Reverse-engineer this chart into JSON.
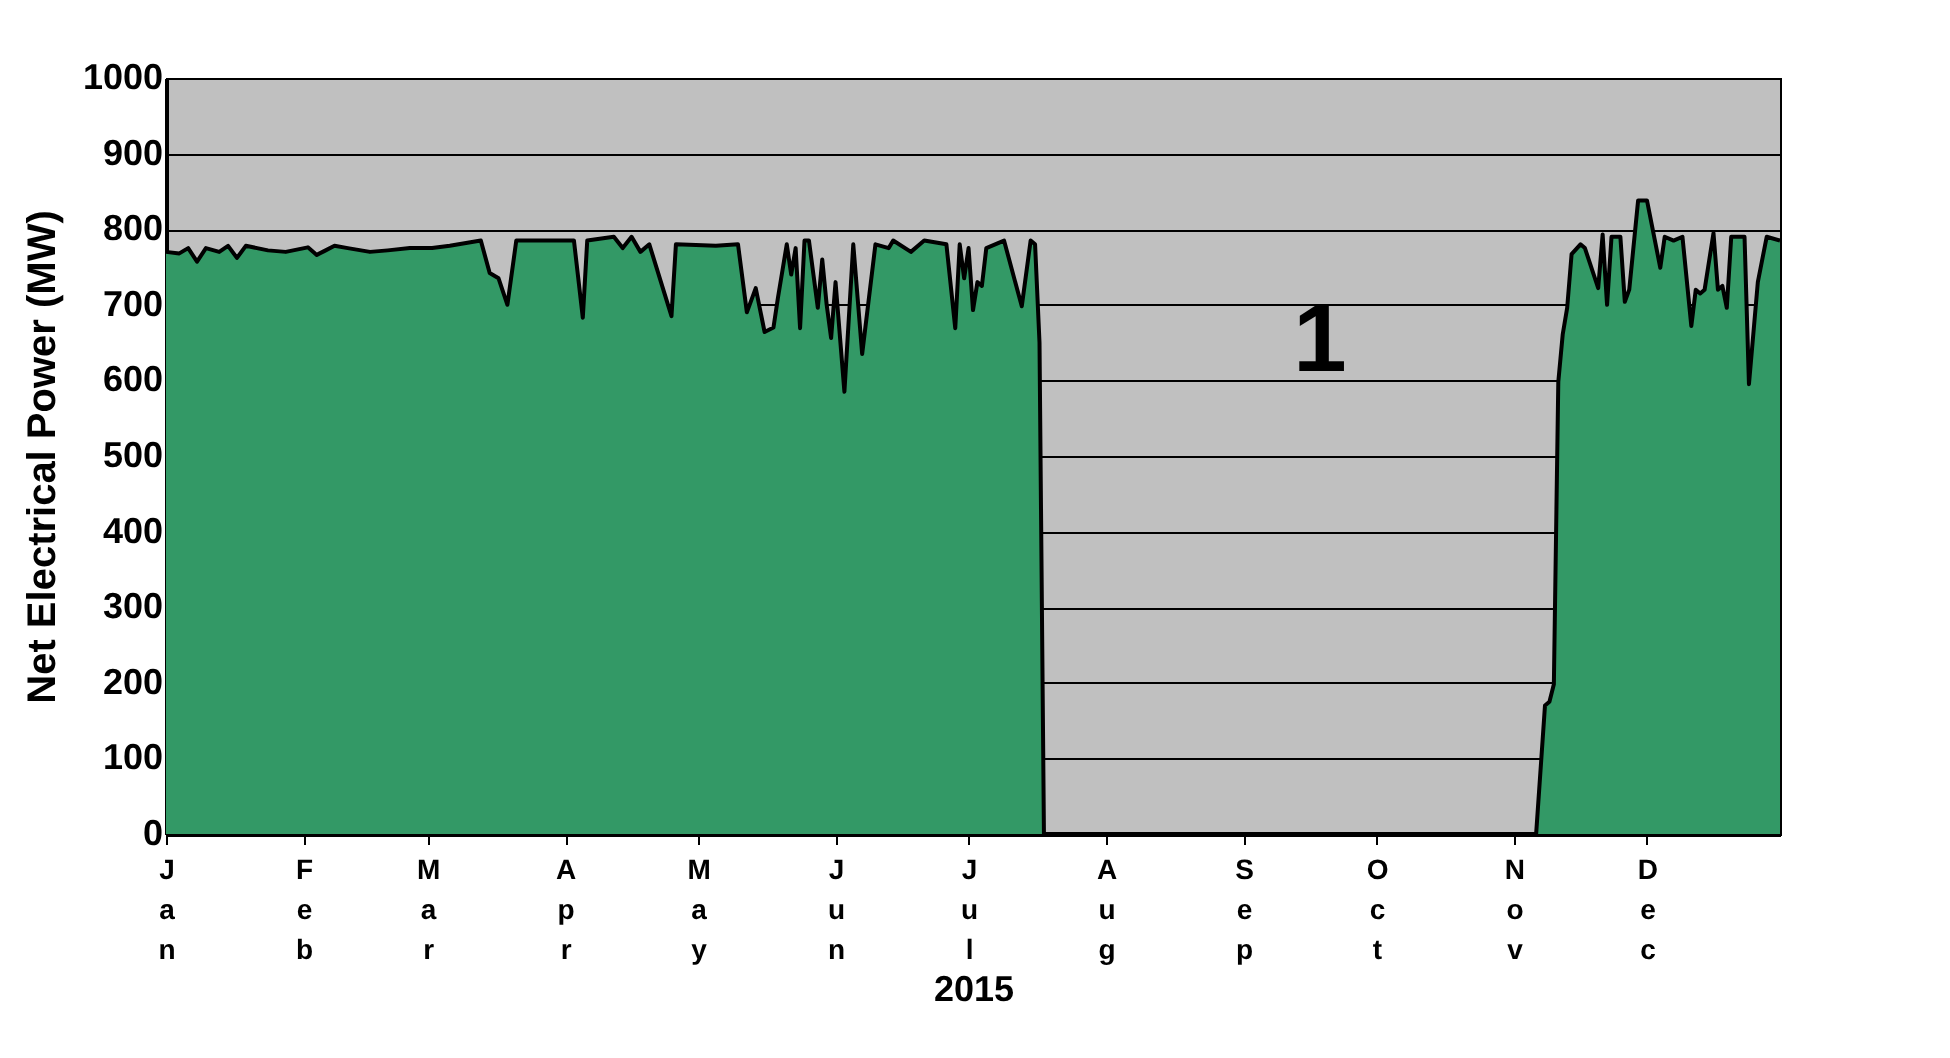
{
  "chart_data": {
    "type": "area",
    "xlabel": "2015",
    "ylabel": "Net Electrical Power (MW)",
    "annotations": [
      "1"
    ],
    "xlim": [
      "2015-01-01",
      "2015-12-31"
    ],
    "ylim": [
      0,
      1000
    ],
    "yticks": [
      0,
      100,
      200,
      300,
      400,
      500,
      600,
      700,
      800,
      900,
      1000
    ],
    "xticks": [
      {
        "value": "2015-01-01",
        "label": "Jan"
      },
      {
        "value": "2015-02-01",
        "label": "Feb"
      },
      {
        "value": "2015-03-01",
        "label": "Mar"
      },
      {
        "value": "2015-04-01",
        "label": "Apr"
      },
      {
        "value": "2015-05-01",
        "label": "May"
      },
      {
        "value": "2015-06-01",
        "label": "Jun"
      },
      {
        "value": "2015-07-01",
        "label": "Jul"
      },
      {
        "value": "2015-08-01",
        "label": "Aug"
      },
      {
        "value": "2015-09-01",
        "label": "Sep"
      },
      {
        "value": "2015-10-01",
        "label": "Oct"
      },
      {
        "value": "2015-11-01",
        "label": "Nov"
      },
      {
        "value": "2015-12-01",
        "label": "Dec"
      }
    ],
    "grid": "y",
    "x": [
      "2015-01-01",
      "2015-01-04",
      "2015-01-06",
      "2015-01-08",
      "2015-01-10",
      "2015-01-13",
      "2015-01-15",
      "2015-01-17",
      "2015-01-19",
      "2015-01-24",
      "2015-01-28",
      "2015-02-02",
      "2015-02-04",
      "2015-02-06",
      "2015-02-08",
      "2015-02-11",
      "2015-02-16",
      "2015-02-20",
      "2015-02-25",
      "2015-03-02",
      "2015-03-06",
      "2015-03-10",
      "2015-03-13",
      "2015-03-15",
      "2015-03-17",
      "2015-03-19",
      "2015-03-21",
      "2015-04-03",
      "2015-04-05",
      "2015-04-06",
      "2015-04-12",
      "2015-04-14",
      "2015-04-16",
      "2015-04-18",
      "2015-04-20",
      "2015-04-25",
      "2015-04-26",
      "2015-05-05",
      "2015-05-10",
      "2015-05-12",
      "2015-05-14",
      "2015-05-16",
      "2015-05-18",
      "2015-05-19",
      "2015-05-21",
      "2015-05-22",
      "2015-05-23",
      "2015-05-24",
      "2015-05-25",
      "2015-05-26",
      "2015-05-28",
      "2015-05-29",
      "2015-05-30",
      "2015-05-31",
      "2015-06-01",
      "2015-06-03",
      "2015-06-05",
      "2015-06-07",
      "2015-06-10",
      "2015-06-13",
      "2015-06-14",
      "2015-06-18",
      "2015-06-21",
      "2015-06-26",
      "2015-06-28",
      "2015-06-29",
      "2015-06-30",
      "2015-07-01",
      "2015-07-02",
      "2015-07-03",
      "2015-07-04",
      "2015-07-05",
      "2015-07-09",
      "2015-07-13",
      "2015-07-15",
      "2015-07-16",
      "2015-07-17",
      "2015-07-18",
      "2015-11-06",
      "2015-11-08",
      "2015-11-09",
      "2015-11-10",
      "2015-11-11",
      "2015-11-12",
      "2015-11-13",
      "2015-11-14",
      "2015-11-16",
      "2015-11-17",
      "2015-11-20",
      "2015-11-21",
      "2015-11-22",
      "2015-11-23",
      "2015-11-25",
      "2015-11-26",
      "2015-11-27",
      "2015-11-29",
      "2015-12-01",
      "2015-12-04",
      "2015-12-05",
      "2015-12-07",
      "2015-12-09",
      "2015-12-11",
      "2015-12-12",
      "2015-12-13",
      "2015-12-14",
      "2015-12-16",
      "2015-12-17",
      "2015-12-18",
      "2015-12-19",
      "2015-12-20",
      "2015-12-23",
      "2015-12-24",
      "2015-12-26",
      "2015-12-28",
      "2015-12-31"
    ],
    "series": [
      {
        "color": "#339966",
        "values": [
          770,
          768,
          775,
          757,
          775,
          770,
          778,
          762,
          778,
          772,
          770,
          776,
          766,
          772,
          778,
          775,
          770,
          772,
          775,
          775,
          778,
          782,
          785,
          742,
          735,
          700,
          785,
          785,
          683,
          785,
          790,
          775,
          790,
          770,
          780,
          685,
          780,
          778,
          780,
          690,
          722,
          664,
          670,
          709,
          780,
          740,
          775,
          669,
          785,
          785,
          696,
          760,
          700,
          656,
          730,
          585,
          780,
          635,
          780,
          775,
          785,
          770,
          785,
          780,
          669,
          780,
          735,
          775,
          693,
          730,
          725,
          775,
          785,
          698,
          785,
          780,
          650,
          0,
          0,
          170,
          175,
          198,
          598,
          661,
          696,
          767,
          780,
          775,
          722,
          793,
          700,
          790,
          790,
          704,
          720,
          838,
          838,
          749,
          790,
          785,
          790,
          672,
          720,
          715,
          720,
          795,
          720,
          725,
          696,
          790,
          790,
          595,
          730,
          790,
          785
        ]
      }
    ]
  }
}
